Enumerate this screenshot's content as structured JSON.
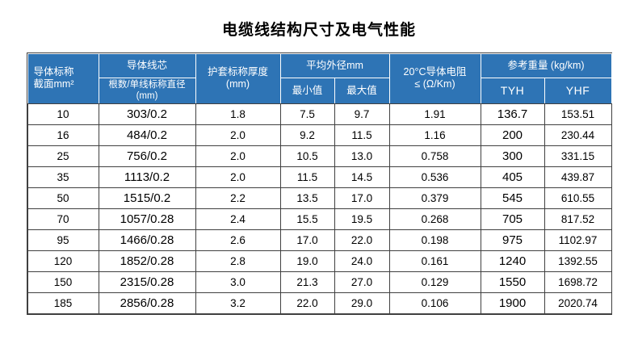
{
  "page": {
    "title": "电缆线结构尺寸及电气性能"
  },
  "table": {
    "colors": {
      "header_bg": "#2e74b5",
      "header_text": "#ffffff",
      "border": "#404040",
      "body_bg": "#ffffff"
    },
    "header": {
      "conductor_section": "导体标称\n截面mm²",
      "conductor_core": "导体线芯",
      "strands_diameter": "根数/单线标称直径 (mm)",
      "sheath_thickness": "护套标称厚度\n(mm)",
      "avg_outer_diameter": "平均外径mm",
      "min_value": "最小值",
      "max_value": "最大值",
      "resistance": "20°C导体电阻\n≤  (Ω/Km)",
      "ref_weight": "参考重量 (kg/km)",
      "tyh": "TYH",
      "yhf": "YHF"
    },
    "rows": [
      [
        "10",
        "303/0.2",
        "1.8",
        "7.5",
        "9.7",
        "1.91",
        "136.7",
        "153.51"
      ],
      [
        "16",
        "484/0.2",
        "2.0",
        "9.2",
        "11.5",
        "1.16",
        "200",
        "230.44"
      ],
      [
        "25",
        "756/0.2",
        "2.0",
        "10.5",
        "13.0",
        "0.758",
        "300",
        "331.15"
      ],
      [
        "35",
        "1113/0.2",
        "2.0",
        "11.5",
        "14.5",
        "0.536",
        "405",
        "439.87"
      ],
      [
        "50",
        "1515/0.2",
        "2.2",
        "13.5",
        "17.0",
        "0.379",
        "545",
        "610.55"
      ],
      [
        "70",
        "1057/0.28",
        "2.4",
        "15.5",
        "19.5",
        "0.268",
        "705",
        "817.52"
      ],
      [
        "95",
        "1466/0.28",
        "2.6",
        "17.0",
        "22.0",
        "0.198",
        "975",
        "1102.97"
      ],
      [
        "120",
        "1852/0.28",
        "2.8",
        "19.0",
        "24.0",
        "0.161",
        "1240",
        "1392.55"
      ],
      [
        "150",
        "2315/0.28",
        "3.0",
        "21.3",
        "27.0",
        "0.129",
        "1550",
        "1698.72"
      ],
      [
        "185",
        "2856/0.28",
        "3.2",
        "22.0",
        "29.0",
        "0.106",
        "1900",
        "2020.74"
      ]
    ]
  }
}
